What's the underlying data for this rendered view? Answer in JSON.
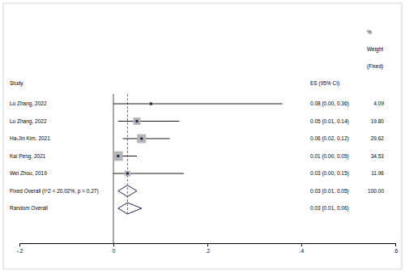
{
  "chart_data": {
    "type": "forest",
    "columns": {
      "study": "Study",
      "estimate": "ES (95% CI)",
      "weight_header": [
        "%",
        "Weight",
        "(Fixed)"
      ]
    },
    "xlim": [
      -0.2,
      0.6
    ],
    "xticks": [
      {
        "value": -0.2,
        "label": "-.2"
      },
      0,
      {
        "value": 0.2,
        "label": ".2"
      },
      {
        "value": 0.4,
        "label": ".4"
      },
      {
        "value": 0.6,
        "label": ".6"
      }
    ],
    "series": [
      {
        "marker": "square",
        "color": "#1f2a5a",
        "categories": [
          "Lu Zhang, 2022",
          "Lu Zhang, 2022",
          "Ha-Jin Kim, 2021",
          "Kai Peng, 2021",
          "Wei Zhou, 2019"
        ],
        "values": [
          0.08,
          0.05,
          0.06,
          0.01,
          0.03
        ],
        "ci_low": [
          0.0,
          0.01,
          0.02,
          0.0,
          0.0
        ],
        "ci_high": [
          0.36,
          0.14,
          0.12,
          0.05,
          0.15
        ],
        "value_labels": [
          "0.08 (0.00, 0.36)",
          "0.05 (0.01, 0.14)",
          "0.06 (0.02, 0.12)",
          "0.01 (0.00, 0.05)",
          "0.03 (0.00, 0.15)"
        ],
        "weights": [
          4.09,
          19.8,
          29.62,
          34.53,
          11.96
        ],
        "weight_labels": [
          "4.09",
          "19.80",
          "29.62",
          "34.53",
          "11.96"
        ]
      },
      {
        "marker": "diamond",
        "color": "#1f2a5a",
        "categories": [
          "Fixed Overall (I^2 = 20.02%, p = 0.27)",
          "Random Overall"
        ],
        "values": [
          0.03,
          0.03
        ],
        "ci_low": [
          0.01,
          0.01
        ],
        "ci_high": [
          0.05,
          0.06
        ],
        "value_labels": [
          "0.03 (0.01, 0.05)",
          "0.03 (0.01, 0.06)"
        ],
        "weights": [
          100,
          null
        ],
        "weight_labels": [
          "100.00",
          null
        ]
      }
    ]
  }
}
